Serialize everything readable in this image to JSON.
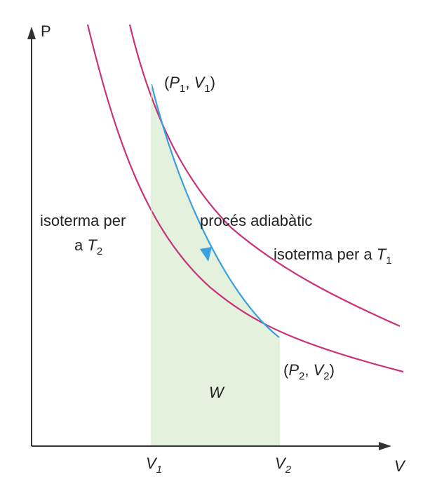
{
  "axes": {
    "y_label": "P",
    "x_label": "V",
    "x_ticks": [
      {
        "letter": "V",
        "sub": "1"
      },
      {
        "letter": "V",
        "sub": "2"
      }
    ]
  },
  "points": {
    "p1": {
      "open": "(",
      "P": "P",
      "P_sub": "1",
      "comma": ", ",
      "V": "V",
      "V_sub": "1",
      "close": ")"
    },
    "p2": {
      "open": "(",
      "P": "P",
      "P_sub": "2",
      "comma": ", ",
      "V": "V",
      "V_sub": "2",
      "close": ")"
    }
  },
  "labels": {
    "isotherm_t2_line1": "isoterma per",
    "isotherm_t2_line2_prefix": "a ",
    "isotherm_t2_T": "T",
    "isotherm_t2_sub": "2",
    "adiabatic": "procés adiabàtic",
    "isotherm_t1_prefix": "isoterma per a ",
    "isotherm_t1_T": "T",
    "isotherm_t1_sub": "1",
    "work": "W"
  },
  "colors": {
    "isotherm": "#c8337a",
    "adiabatic": "#3aa0e0",
    "work_fill": "#e4f1dc",
    "axis": "#333333"
  }
}
